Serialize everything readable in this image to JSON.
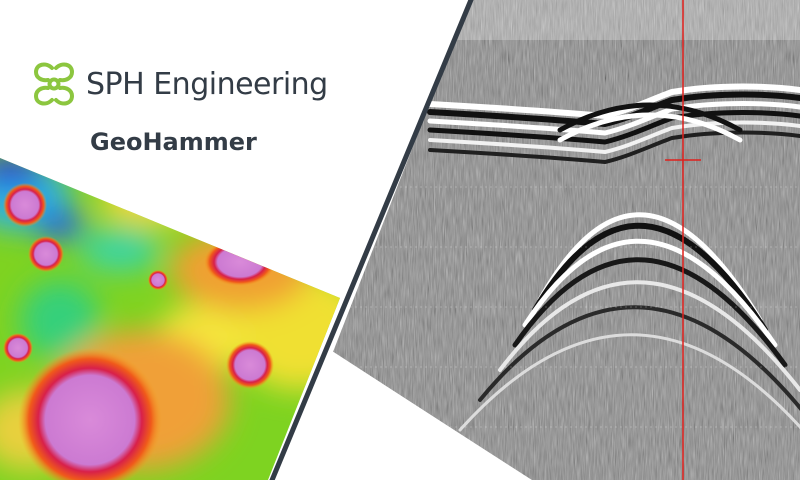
{
  "brand": {
    "name": "SPH Engineering",
    "logo_icon": "sph-logo-icon",
    "accent_color": "#8cc63f"
  },
  "product": {
    "name": "GeoHammer"
  },
  "images": {
    "magnetic_map": "magnetic-anomaly-heatmap",
    "radar_profile": "gpr-radargram"
  },
  "colors": {
    "divider": "#333c46",
    "text": "#333c46",
    "cursor_line": "#e0201c"
  }
}
